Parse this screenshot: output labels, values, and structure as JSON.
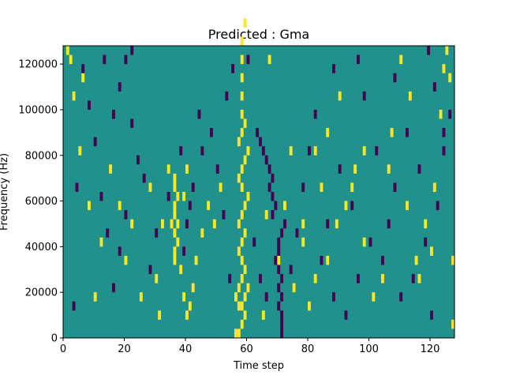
{
  "chart_data": {
    "type": "heatmap",
    "title": "Predicted : Gma",
    "xlabel": "Time step",
    "ylabel": "Frequency (Hz)",
    "xlim": [
      0,
      128
    ],
    "ylim": [
      0,
      128000
    ],
    "x_ticks": [
      0,
      20,
      40,
      60,
      80,
      100,
      120
    ],
    "x_tick_labels": [
      "0",
      "20",
      "40",
      "60",
      "80",
      "100",
      "120"
    ],
    "y_ticks": [
      0,
      20000,
      40000,
      60000,
      80000,
      100000,
      120000
    ],
    "y_tick_labels": [
      "0",
      "20000",
      "40000",
      "60000",
      "80000",
      "100000",
      "120000"
    ],
    "grid": false,
    "value_levels": [
      0,
      0.5,
      1
    ],
    "colors": {
      "low": "#440154",
      "mid": "#21918c",
      "high": "#fde725"
    },
    "background_level": 0.5,
    "bin_width_time": 1,
    "bin_height_hz": 4000,
    "cells": [
      [
        56,
        0,
        1
      ],
      [
        57,
        0,
        1
      ],
      [
        58,
        1,
        1
      ],
      [
        59,
        2,
        1
      ],
      [
        58,
        3,
        1
      ],
      [
        59,
        4,
        1
      ],
      [
        60,
        5,
        1
      ],
      [
        57,
        3,
        1
      ],
      [
        56,
        4,
        1
      ],
      [
        57,
        5,
        1
      ],
      [
        58,
        6,
        1
      ],
      [
        59,
        7,
        1
      ],
      [
        58,
        8,
        1
      ],
      [
        57,
        9,
        1
      ],
      [
        58,
        10,
        1
      ],
      [
        59,
        11,
        1
      ],
      [
        57,
        12,
        1
      ],
      [
        58,
        13,
        1
      ],
      [
        59,
        14,
        1
      ],
      [
        60,
        15,
        1
      ],
      [
        58,
        16,
        1
      ],
      [
        57,
        17,
        1
      ],
      [
        58,
        18,
        1
      ],
      [
        59,
        19,
        1
      ],
      [
        60,
        20,
        1
      ],
      [
        57,
        21,
        1
      ],
      [
        58,
        22,
        1
      ],
      [
        59,
        23,
        1
      ],
      [
        58,
        24,
        1
      ],
      [
        58,
        26,
        1
      ],
      [
        58,
        28,
        1
      ],
      [
        58,
        30,
        1
      ],
      [
        58,
        32,
        1
      ],
      [
        59,
        34,
        1
      ],
      [
        36,
        8,
        1
      ],
      [
        36,
        9,
        1
      ],
      [
        37,
        10,
        1
      ],
      [
        36,
        11,
        1
      ],
      [
        37,
        12,
        1
      ],
      [
        36,
        13,
        1
      ],
      [
        36,
        14,
        1
      ],
      [
        37,
        15,
        1
      ],
      [
        36,
        16,
        1
      ],
      [
        36,
        17,
        1
      ],
      [
        35,
        12,
        1
      ],
      [
        34,
        18,
        1
      ],
      [
        38,
        7,
        1
      ],
      [
        39,
        4,
        1
      ],
      [
        40,
        2,
        1
      ],
      [
        41,
        3,
        1
      ],
      [
        39,
        15,
        1
      ],
      [
        40,
        18,
        1
      ],
      [
        42,
        5,
        1
      ],
      [
        43,
        8,
        1
      ],
      [
        45,
        11,
        1
      ],
      [
        47,
        14,
        1
      ],
      [
        49,
        12,
        1
      ],
      [
        51,
        16,
        1
      ],
      [
        30,
        6,
        1
      ],
      [
        31,
        2,
        1
      ],
      [
        32,
        12,
        1
      ],
      [
        28,
        16,
        1
      ],
      [
        25,
        4,
        1
      ],
      [
        22,
        12,
        1
      ],
      [
        20,
        8,
        1
      ],
      [
        18,
        14,
        1
      ],
      [
        15,
        18,
        1
      ],
      [
        12,
        10,
        1
      ],
      [
        10,
        4,
        1
      ],
      [
        8,
        14,
        1
      ],
      [
        5,
        20,
        1
      ],
      [
        3,
        26,
        1
      ],
      [
        2,
        30,
        1
      ],
      [
        1,
        31,
        1
      ],
      [
        6,
        28,
        1
      ],
      [
        65,
        2,
        1
      ],
      [
        66,
        13,
        1
      ],
      [
        67,
        30,
        1
      ],
      [
        70,
        8,
        1
      ],
      [
        72,
        14,
        1
      ],
      [
        74,
        20,
        1
      ],
      [
        75,
        5,
        1
      ],
      [
        78,
        10,
        1
      ],
      [
        80,
        3,
        1
      ],
      [
        82,
        6,
        1
      ],
      [
        84,
        16,
        1
      ],
      [
        86,
        8,
        1
      ],
      [
        89,
        12,
        1
      ],
      [
        92,
        14,
        1
      ],
      [
        95,
        18,
        1
      ],
      [
        98,
        10,
        1
      ],
      [
        101,
        4,
        1
      ],
      [
        104,
        6,
        1
      ],
      [
        107,
        22,
        1
      ],
      [
        110,
        30,
        1
      ],
      [
        113,
        26,
        1
      ],
      [
        115,
        8,
        1
      ],
      [
        118,
        12,
        1
      ],
      [
        121,
        16,
        1
      ],
      [
        123,
        24,
        1
      ],
      [
        124,
        29,
        1
      ],
      [
        125,
        31,
        1
      ],
      [
        126,
        28,
        1
      ],
      [
        127,
        8,
        1
      ],
      [
        127,
        1,
        1
      ],
      [
        120,
        9,
        1
      ],
      [
        116,
        6,
        1
      ],
      [
        112,
        14,
        1
      ],
      [
        106,
        18,
        1
      ],
      [
        98,
        20,
        1
      ],
      [
        94,
        16,
        1
      ],
      [
        90,
        26,
        1
      ],
      [
        86,
        22,
        1
      ],
      [
        82,
        20,
        1
      ],
      [
        78,
        12,
        1
      ],
      [
        71,
        0,
        0
      ],
      [
        71,
        1,
        0
      ],
      [
        71,
        2,
        0
      ],
      [
        70,
        3,
        0
      ],
      [
        71,
        4,
        0
      ],
      [
        70,
        5,
        0
      ],
      [
        71,
        6,
        0
      ],
      [
        70,
        7,
        0
      ],
      [
        69,
        8,
        0
      ],
      [
        70,
        9,
        0
      ],
      [
        70,
        10,
        0
      ],
      [
        71,
        11,
        0
      ],
      [
        72,
        12,
        0
      ],
      [
        68,
        13,
        0
      ],
      [
        69,
        14,
        0
      ],
      [
        68,
        15,
        0
      ],
      [
        67,
        16,
        0
      ],
      [
        68,
        17,
        0
      ],
      [
        67,
        18,
        0
      ],
      [
        66,
        19,
        0
      ],
      [
        65,
        20,
        0
      ],
      [
        64,
        21,
        0
      ],
      [
        63,
        22,
        0
      ],
      [
        62,
        10,
        0
      ],
      [
        64,
        6,
        0
      ],
      [
        66,
        4,
        0
      ],
      [
        74,
        7,
        0
      ],
      [
        76,
        11,
        0
      ],
      [
        78,
        16,
        0
      ],
      [
        80,
        20,
        0
      ],
      [
        82,
        24,
        0
      ],
      [
        84,
        8,
        0
      ],
      [
        86,
        12,
        0
      ],
      [
        88,
        4,
        0
      ],
      [
        90,
        18,
        0
      ],
      [
        92,
        2,
        0
      ],
      [
        94,
        14,
        0
      ],
      [
        96,
        6,
        0
      ],
      [
        98,
        26,
        0
      ],
      [
        100,
        10,
        0
      ],
      [
        102,
        20,
        0
      ],
      [
        104,
        8,
        0
      ],
      [
        106,
        12,
        0
      ],
      [
        108,
        16,
        0
      ],
      [
        110,
        4,
        0
      ],
      [
        112,
        22,
        0
      ],
      [
        114,
        6,
        0
      ],
      [
        116,
        18,
        0
      ],
      [
        118,
        10,
        0
      ],
      [
        120,
        2,
        0
      ],
      [
        122,
        14,
        0
      ],
      [
        124,
        20,
        0
      ],
      [
        126,
        24,
        0
      ],
      [
        39,
        9,
        0
      ],
      [
        40,
        12,
        0
      ],
      [
        41,
        14,
        0
      ],
      [
        42,
        16,
        0
      ],
      [
        45,
        20,
        0
      ],
      [
        48,
        22,
        0
      ],
      [
        50,
        18,
        0
      ],
      [
        52,
        13,
        0
      ],
      [
        54,
        6,
        0
      ],
      [
        53,
        26,
        0
      ],
      [
        55,
        29,
        0
      ],
      [
        60,
        30,
        0
      ],
      [
        44,
        24,
        0
      ],
      [
        38,
        20,
        0
      ],
      [
        34,
        15,
        0
      ],
      [
        30,
        11,
        0
      ],
      [
        28,
        7,
        0
      ],
      [
        26,
        17,
        0
      ],
      [
        24,
        19,
        0
      ],
      [
        22,
        23,
        0
      ],
      [
        20,
        13,
        0
      ],
      [
        18,
        9,
        0
      ],
      [
        16,
        5,
        0
      ],
      [
        14,
        11,
        0
      ],
      [
        12,
        15,
        0
      ],
      [
        10,
        21,
        0
      ],
      [
        8,
        25,
        0
      ],
      [
        6,
        29,
        0
      ],
      [
        4,
        16,
        0
      ],
      [
        3,
        3,
        0
      ],
      [
        20,
        30,
        0
      ],
      [
        18,
        27,
        0
      ],
      [
        22,
        31,
        0
      ],
      [
        16,
        24,
        0
      ],
      [
        13,
        30,
        0
      ],
      [
        119,
        31,
        0
      ],
      [
        121,
        27,
        0
      ],
      [
        124,
        22,
        0
      ],
      [
        108,
        28,
        0
      ],
      [
        96,
        30,
        0
      ],
      [
        88,
        29,
        0
      ]
    ]
  }
}
